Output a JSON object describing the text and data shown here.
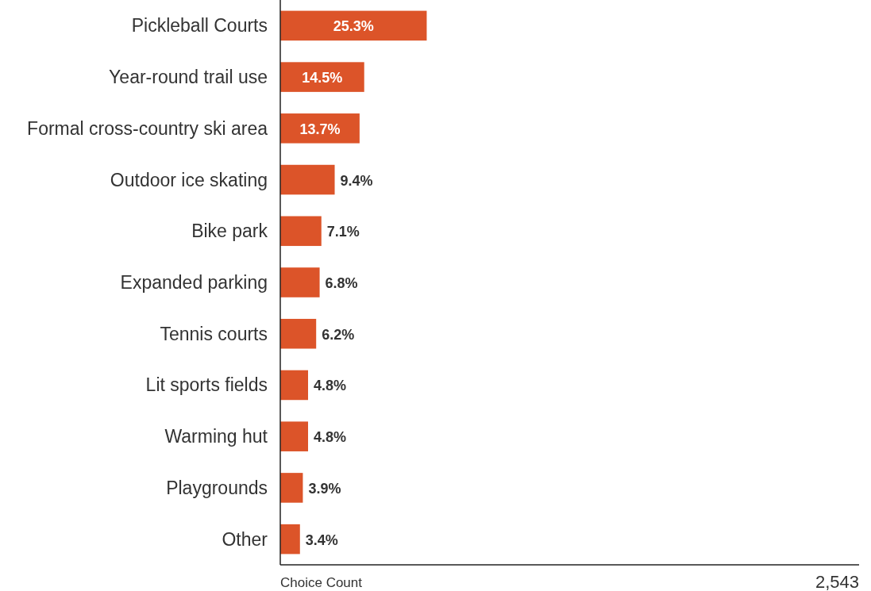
{
  "chart_data": {
    "type": "bar",
    "orientation": "horizontal",
    "categories": [
      "Pickleball Courts",
      "Year-round trail use",
      "Formal cross-country ski area",
      "Outdoor ice skating",
      "Bike park",
      "Expanded parking",
      "Tennis courts",
      "Lit sports fields",
      "Warming hut",
      "Playgrounds",
      "Other"
    ],
    "values": [
      25.3,
      14.5,
      13.7,
      9.4,
      7.1,
      6.8,
      6.2,
      4.8,
      4.8,
      3.9,
      3.4
    ],
    "value_labels": [
      "25.3%",
      "14.5%",
      "13.7%",
      "9.4%",
      "7.1%",
      "6.8%",
      "6.2%",
      "4.8%",
      "4.8%",
      "3.9%",
      "3.4%"
    ],
    "color": "#dc5429",
    "xlim": [
      0,
      100
    ],
    "xlabel": "Choice Count",
    "annotations": [
      "2,543"
    ]
  }
}
